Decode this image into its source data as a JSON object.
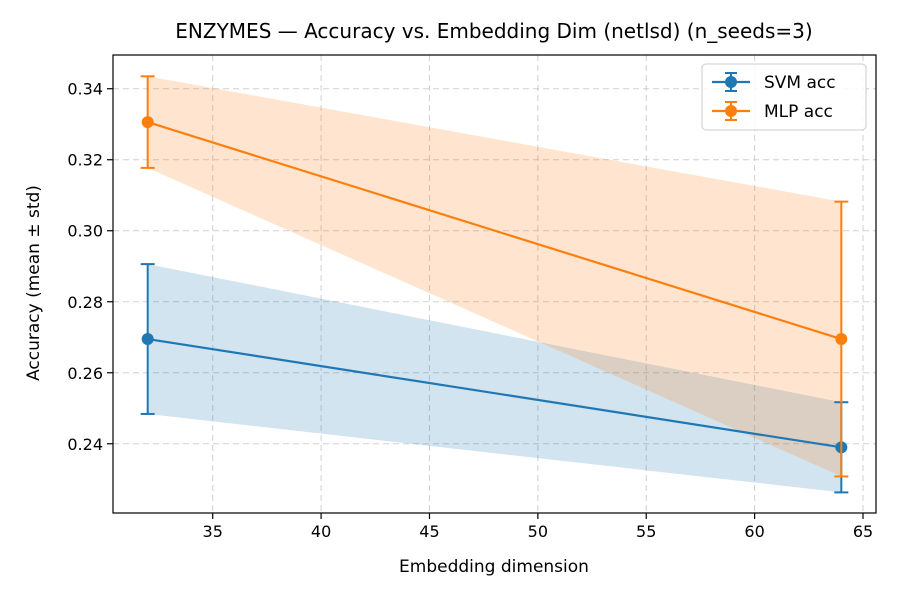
{
  "chart_data": {
    "type": "line",
    "title": "ENZYMES — Accuracy vs. Embedding Dim (netlsd)  (n_seeds=3)",
    "xlabel": "Embedding dimension",
    "ylabel": "Accuracy (mean ± std)",
    "xlim": [
      30.4,
      65.6
    ],
    "ylim": [
      0.2205,
      0.3495
    ],
    "xticks": [
      35,
      40,
      45,
      50,
      55,
      60,
      65
    ],
    "xtick_labels": [
      "35",
      "40",
      "45",
      "50",
      "55",
      "60",
      "65"
    ],
    "yticks": [
      0.24,
      0.26,
      0.28,
      0.3,
      0.32,
      0.34
    ],
    "ytick_labels": [
      "0.24",
      "0.26",
      "0.28",
      "0.30",
      "0.32",
      "0.34"
    ],
    "grid": true,
    "legend_position": "top-right",
    "x": [
      32,
      64
    ],
    "series": [
      {
        "name": "SVM acc",
        "color": "#1f77b4",
        "band_color": "#1f77b4",
        "values": [
          0.2695,
          0.239
        ],
        "std": [
          0.0211,
          0.0127
        ]
      },
      {
        "name": "MLP acc",
        "color": "#ff7f0e",
        "band_color": "#ff7f0e",
        "values": [
          0.3306,
          0.2695
        ],
        "std": [
          0.0129,
          0.0387
        ]
      }
    ]
  }
}
